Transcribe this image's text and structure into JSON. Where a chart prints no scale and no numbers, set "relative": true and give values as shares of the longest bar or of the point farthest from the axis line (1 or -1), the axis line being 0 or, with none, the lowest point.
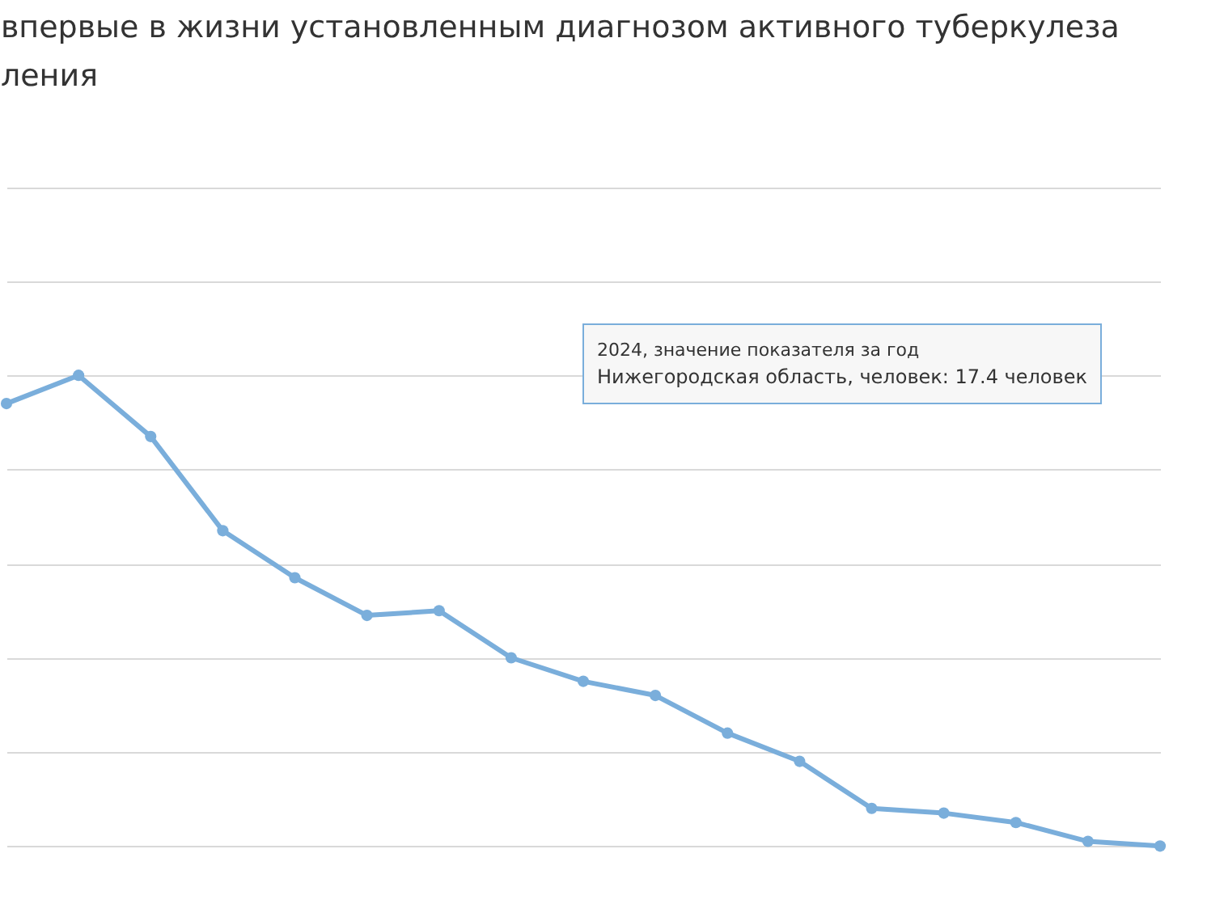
{
  "chart_data": {
    "type": "line",
    "title": "впервые в жизни установленным диагнозом активного туберкулеза\nления",
    "categories": [
      null,
      null,
      null,
      null,
      null,
      null,
      null,
      null,
      null,
      null,
      null,
      null,
      null,
      null,
      null,
      null,
      null
    ],
    "relative": true,
    "series": [
      {
        "color": "#7aaedb",
        "values": [
          0.94,
          1,
          0.87,
          0.67,
          0.57,
          0.49,
          0.5,
          0.4,
          0.35,
          0.32,
          0.24,
          0.18,
          0.08,
          0.07,
          0.05,
          0.01,
          0
        ]
      }
    ],
    "marker": "circle",
    "grid": true,
    "annotations": [
      "2024, значение показателя за год",
      "Нижегородская область, человек: 17.4 человек"
    ]
  }
}
